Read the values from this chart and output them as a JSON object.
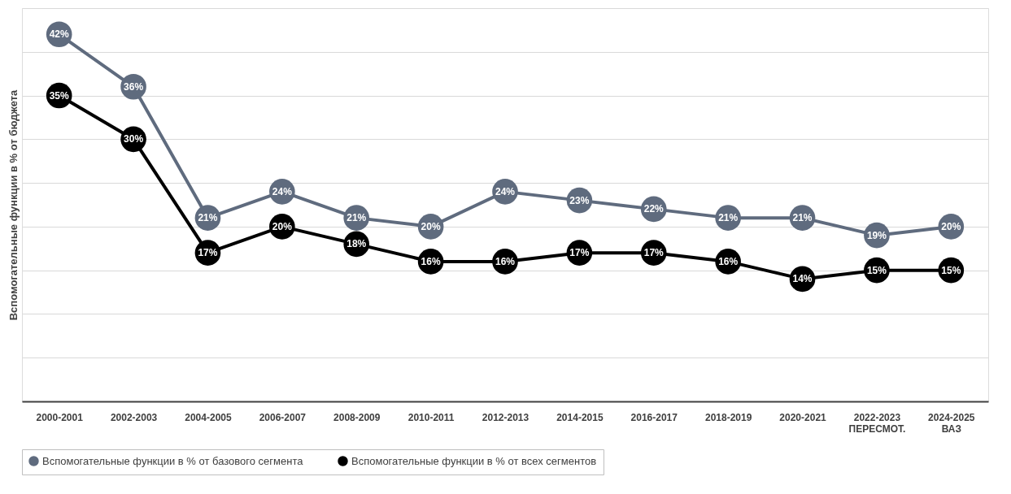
{
  "chart_data": {
    "type": "line",
    "ylabel": "Вспомогательные функции в % от бюджета",
    "categories": [
      "2000-2001",
      "2002-2003",
      "2004-2005",
      "2006-2007",
      "2008-2009",
      "2010-2011",
      "2012-2013",
      "2014-2015",
      "2016-2017",
      "2018-2019",
      "2020-2021",
      "2022-2023\nПЕРЕСМОТ.",
      "2024-2025\nВАЗ"
    ],
    "series": [
      {
        "name": "Вспомогательные функции в % от базового сегмента",
        "color": "#5f6b7e",
        "values": [
          42,
          36,
          21,
          24,
          21,
          20,
          24,
          23,
          22,
          21,
          21,
          19,
          20
        ],
        "value_labels": [
          "42%",
          "36%",
          "21%",
          "24%",
          "21%",
          "20%",
          "24%",
          "23%",
          "22%",
          "21%",
          "21%",
          "19%",
          "20%"
        ]
      },
      {
        "name": "Вспомогательные функции в % от всех сегментов",
        "color": "#000000",
        "values": [
          35,
          30,
          17,
          20,
          18,
          16,
          16,
          17,
          17,
          16,
          14,
          15,
          15
        ],
        "value_labels": [
          "35%",
          "30%",
          "17%",
          "20%",
          "18%",
          "16%",
          "16%",
          "17%",
          "17%",
          "16%",
          "14%",
          "15%",
          "15%"
        ]
      }
    ],
    "tick_labels": "x",
    "grid": "y",
    "legend": "bottom",
    "marker": "circle",
    "line_style": "solid"
  }
}
